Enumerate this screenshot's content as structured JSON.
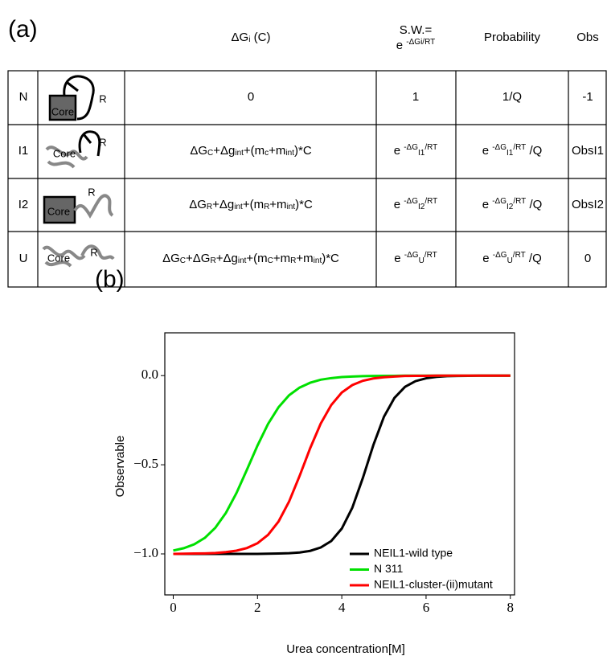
{
  "panel_a": {
    "label": "(a)"
  },
  "table": {
    "header": {
      "dg": [
        {
          "base": "ΔG"
        },
        {
          "sub": "i"
        },
        {
          "base": " (C)"
        }
      ],
      "sw_title": "S.W.=",
      "sw": [
        {
          "base": "e "
        },
        {
          "sup": "-ΔGi/RT"
        }
      ],
      "prob": "Probability",
      "obs": "Obs"
    },
    "rows": [
      {
        "state": "N",
        "core": "Core",
        "r": "R",
        "dg": [
          {
            "base": "0"
          }
        ],
        "sw": [
          {
            "base": "1"
          }
        ],
        "prob": [
          {
            "base": "1/Q"
          }
        ],
        "obs": "-1"
      },
      {
        "state": "I1",
        "core": "Core",
        "r": "R",
        "dg": [
          {
            "base": "ΔG"
          },
          {
            "sub": "C"
          },
          {
            "base": "+Δg"
          },
          {
            "sub": "int"
          },
          {
            "base": "+(m"
          },
          {
            "sub": "c"
          },
          {
            "base": "+m"
          },
          {
            "sub": "int"
          },
          {
            "base": ")*C"
          }
        ],
        "sw": [
          {
            "base": "e "
          },
          {
            "sup": "-ΔG"
          },
          {
            "sub": "I1"
          },
          {
            "sup": "/RT"
          }
        ],
        "prob": [
          {
            "base": "e "
          },
          {
            "sup": "-ΔG"
          },
          {
            "sub": "I1"
          },
          {
            "sup": "/RT"
          },
          {
            "base": " /Q"
          }
        ],
        "obs": "ObsI1"
      },
      {
        "state": "I2",
        "core": "Core",
        "r": "R",
        "dg": [
          {
            "base": "ΔG"
          },
          {
            "sub": "R"
          },
          {
            "base": "+Δg"
          },
          {
            "sub": "int"
          },
          {
            "base": "+(m"
          },
          {
            "sub": "R"
          },
          {
            "base": "+m"
          },
          {
            "sub": "int"
          },
          {
            "base": ")*C"
          }
        ],
        "sw": [
          {
            "base": "e "
          },
          {
            "sup": "-ΔG"
          },
          {
            "sub": "I2"
          },
          {
            "sup": "/RT"
          }
        ],
        "prob": [
          {
            "base": "e "
          },
          {
            "sup": "-ΔG"
          },
          {
            "sub": "I2"
          },
          {
            "sup": "/RT"
          },
          {
            "base": " /Q"
          }
        ],
        "obs": "ObsI2"
      },
      {
        "state": "U",
        "core": "Core",
        "r": "R",
        "dg": [
          {
            "base": "ΔG"
          },
          {
            "sub": "C"
          },
          {
            "base": "+ΔG"
          },
          {
            "sub": "R"
          },
          {
            "base": "+Δg"
          },
          {
            "sub": "int"
          },
          {
            "base": "+(m"
          },
          {
            "sub": "C"
          },
          {
            "base": "+m"
          },
          {
            "sub": "R"
          },
          {
            "base": "+m"
          },
          {
            "sub": "int"
          },
          {
            "base": ")*C"
          }
        ],
        "sw": [
          {
            "base": "e "
          },
          {
            "sup": "-ΔG"
          },
          {
            "sub": "U"
          },
          {
            "sup": "/RT"
          }
        ],
        "prob": [
          {
            "base": "e "
          },
          {
            "sup": "-ΔG"
          },
          {
            "sub": "U"
          },
          {
            "sup": "/RT"
          },
          {
            "base": " /Q"
          }
        ],
        "obs": "0"
      }
    ]
  },
  "chart_data": {
    "type": "line",
    "panel_label": "(b)",
    "x_label": "Urea concentration[M]",
    "y_label": "Observable",
    "x": [
      0,
      0.25,
      0.5,
      0.75,
      1,
      1.25,
      1.5,
      1.75,
      2,
      2.25,
      2.5,
      2.75,
      3,
      3.25,
      3.5,
      3.75,
      4,
      4.25,
      4.5,
      4.75,
      5,
      5.25,
      5.5,
      5.75,
      6,
      6.25,
      6.5,
      6.75,
      7,
      7.25,
      7.5,
      7.75,
      8
    ],
    "series": [
      {
        "name": "NEIL1-wild type",
        "color": "#000000",
        "values": [
          -1,
          -1,
          -1,
          -1,
          -1,
          -1,
          -1,
          -1,
          -1,
          -0.999,
          -0.998,
          -0.996,
          -0.992,
          -0.983,
          -0.964,
          -0.928,
          -0.858,
          -0.741,
          -0.574,
          -0.389,
          -0.231,
          -0.125,
          -0.063,
          -0.031,
          -0.015,
          -0.007,
          -0.003,
          -0.002,
          -0.001,
          0,
          0,
          0,
          0
        ]
      },
      {
        "name": "N 311",
        "color": "#00e000",
        "values": [
          -0.981,
          -0.968,
          -0.946,
          -0.91,
          -0.853,
          -0.77,
          -0.659,
          -0.527,
          -0.392,
          -0.271,
          -0.177,
          -0.11,
          -0.067,
          -0.04,
          -0.023,
          -0.014,
          -0.008,
          -0.005,
          -0.003,
          -0.002,
          -0.001,
          -0.001,
          0,
          0,
          0,
          0,
          0,
          0,
          0,
          0,
          0,
          0,
          0
        ]
      },
      {
        "name": "NEIL1-cluster-(ii)mutant",
        "color": "#ff0000",
        "values": [
          -1,
          -0.999,
          -0.998,
          -0.997,
          -0.995,
          -0.99,
          -0.982,
          -0.967,
          -0.94,
          -0.893,
          -0.818,
          -0.706,
          -0.562,
          -0.407,
          -0.269,
          -0.165,
          -0.095,
          -0.053,
          -0.029,
          -0.016,
          -0.009,
          -0.005,
          -0.002,
          -0.001,
          -0.001,
          0,
          0,
          0,
          0,
          0,
          0,
          0,
          0
        ]
      }
    ],
    "xlim": [
      -0.2,
      8.1
    ],
    "ylim": [
      -1.23,
      0.24
    ],
    "xticks": [
      0,
      2,
      4,
      6,
      8
    ],
    "yticks": [
      {
        "value": 0,
        "label": "0.0"
      },
      {
        "value": -0.5,
        "label": "−0.5"
      },
      {
        "value": -1,
        "label": "−1.0"
      }
    ],
    "grid": false,
    "legend": "lower right"
  }
}
